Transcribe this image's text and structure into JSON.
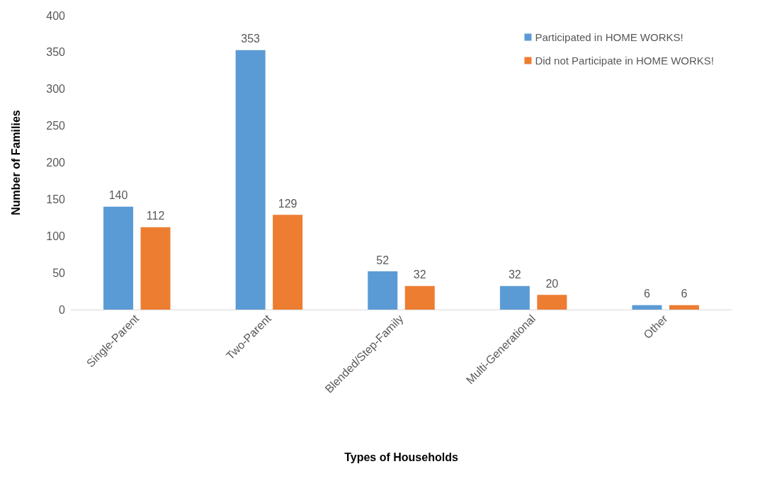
{
  "chart_data": {
    "type": "bar",
    "xlabel": "Types of Households",
    "ylabel": "Number of Families",
    "categories": [
      "Single-Parent",
      "Two-Parent",
      "Blended/Step-Family",
      "Multi-Generational",
      "Other"
    ],
    "series": [
      {
        "name": "Participated in HOME WORKS!",
        "color": "#5b9bd5",
        "values": [
          140,
          353,
          52,
          32,
          6
        ]
      },
      {
        "name": "Did not Participate in HOME WORKS!",
        "color": "#ed7d31",
        "values": [
          112,
          129,
          32,
          20,
          6
        ]
      }
    ],
    "ylim": [
      0,
      400
    ],
    "yticks": [
      0,
      50,
      100,
      150,
      200,
      250,
      300,
      350,
      400
    ],
    "grid": false,
    "legend": "top right",
    "data_labels": true
  }
}
